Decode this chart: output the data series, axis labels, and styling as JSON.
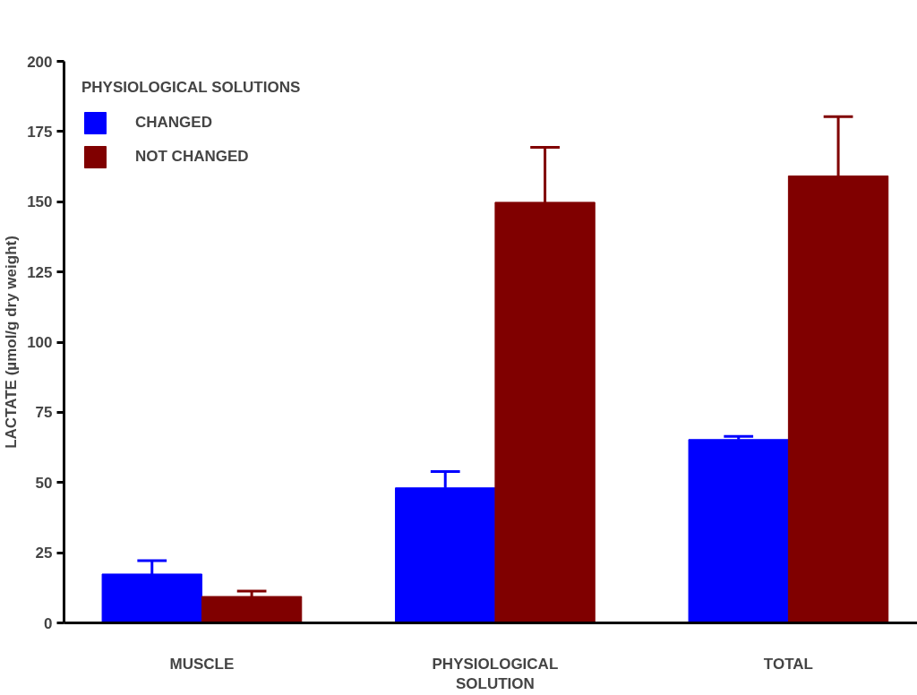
{
  "chart_data": {
    "type": "bar",
    "ylabel": "LACTATE (µmol/g dry weight)",
    "legend_title": "PHYSIOLOGICAL SOLUTIONS",
    "categories": [
      "MUSCLE",
      "PHYSIOLOGICAL SOLUTION",
      "TOTAL"
    ],
    "series": [
      {
        "name": "CHANGED",
        "color": "#0000ff",
        "values": [
          17.4,
          48.1,
          65.3
        ],
        "errors": [
          [
            17.4,
            22.2
          ],
          [
            48.1,
            53.9
          ],
          [
            65.3,
            66.4
          ]
        ]
      },
      {
        "name": "NOT CHANGED",
        "color": "#800000",
        "values": [
          9.4,
          149.8,
          159.2
        ],
        "errors": [
          [
            9.4,
            11.3
          ],
          [
            149.8,
            169.4
          ],
          [
            159.2,
            180.3
          ]
        ]
      }
    ],
    "ylim": [
      0,
      200
    ],
    "yticks": [
      0,
      25,
      50,
      75,
      100,
      125,
      150,
      175,
      200
    ],
    "grid": false,
    "legend": "top left"
  }
}
